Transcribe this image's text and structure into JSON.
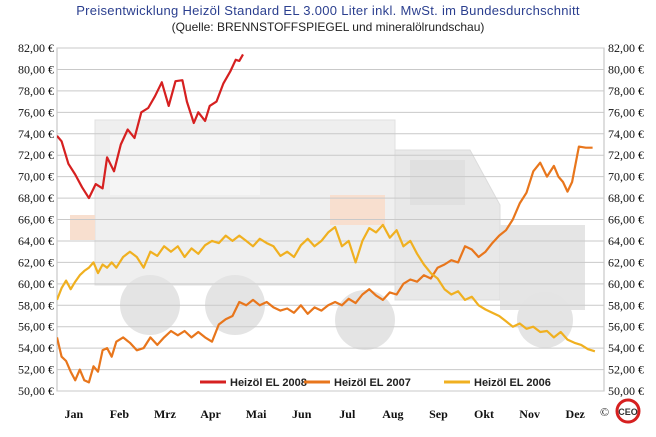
{
  "chart_data": {
    "type": "line",
    "title": "Preisentwicklung Heizöl Standard EL 3.000 Liter inkl. MwSt. im Bundesdurchschnitt",
    "subtitle": "(Quelle: BRENNSTOFFSPIEGEL und mineralölrundschau)",
    "xlabel": "",
    "ylabel": "",
    "x_range": [
      0,
      12
    ],
    "ylim": [
      50,
      82
    ],
    "y_ticks": [
      50,
      52,
      54,
      56,
      58,
      60,
      62,
      64,
      66,
      68,
      70,
      72,
      74,
      76,
      78,
      80,
      82
    ],
    "y_tick_labels": [
      "50,00 €",
      "52,00 €",
      "54,00 €",
      "56,00 €",
      "58,00 €",
      "60,00 €",
      "62,00 €",
      "64,00 €",
      "66,00 €",
      "68,00 €",
      "70,00 €",
      "72,00 €",
      "74,00 €",
      "76,00 €",
      "78,00 €",
      "80,00 €",
      "82,00 €"
    ],
    "months": [
      "Jan",
      "Feb",
      "Mrz",
      "Apr",
      "Mai",
      "Jun",
      "Jul",
      "Aug",
      "Sep",
      "Okt",
      "Nov",
      "Dez"
    ],
    "grid": true,
    "legend_position": "bottom",
    "copyright": "©",
    "logo_text": "CEO",
    "series": [
      {
        "name": "Heizöl EL 2008",
        "color": "#d62020",
        "x": [
          0.0,
          0.1,
          0.25,
          0.4,
          0.55,
          0.7,
          0.85,
          1.0,
          1.1,
          1.25,
          1.4,
          1.55,
          1.7,
          1.85,
          2.0,
          2.15,
          2.3,
          2.45,
          2.6,
          2.75,
          2.85,
          3.0,
          3.1,
          3.25,
          3.35,
          3.5,
          3.65,
          3.8,
          3.92,
          4.0,
          4.08
        ],
        "y": [
          73.8,
          73.3,
          71.2,
          70.2,
          69.0,
          68.0,
          69.3,
          68.9,
          71.8,
          70.5,
          73.0,
          74.4,
          73.6,
          76.0,
          76.4,
          77.5,
          78.8,
          76.6,
          78.9,
          79.0,
          77.0,
          75.0,
          76.0,
          75.2,
          76.6,
          77.0,
          78.7,
          79.8,
          80.9,
          80.8,
          81.4
        ]
      },
      {
        "name": "Heizöl EL 2007",
        "color": "#e8761c",
        "x": [
          0.0,
          0.1,
          0.2,
          0.3,
          0.4,
          0.5,
          0.6,
          0.7,
          0.8,
          0.9,
          1.0,
          1.1,
          1.2,
          1.3,
          1.45,
          1.6,
          1.75,
          1.9,
          2.05,
          2.2,
          2.35,
          2.5,
          2.65,
          2.8,
          2.95,
          3.1,
          3.25,
          3.4,
          3.55,
          3.7,
          3.85,
          4.0,
          4.15,
          4.3,
          4.45,
          4.6,
          4.75,
          4.9,
          5.05,
          5.2,
          5.35,
          5.5,
          5.65,
          5.8,
          5.95,
          6.1,
          6.25,
          6.4,
          6.55,
          6.7,
          6.85,
          7.0,
          7.15,
          7.3,
          7.45,
          7.6,
          7.75,
          7.9,
          8.05,
          8.2,
          8.35,
          8.5,
          8.65,
          8.8,
          8.95,
          9.1,
          9.25,
          9.4,
          9.55,
          9.7,
          9.85,
          10.0,
          10.15,
          10.3,
          10.45,
          10.6,
          10.75,
          10.9,
          11.0,
          11.1,
          11.2,
          11.3,
          11.45,
          11.6,
          11.75
        ],
        "y": [
          55.0,
          53.2,
          52.8,
          51.8,
          51.0,
          52.0,
          51.0,
          50.8,
          52.3,
          51.8,
          53.8,
          54.0,
          53.2,
          54.6,
          55.0,
          54.5,
          53.8,
          54.0,
          55.0,
          54.3,
          55.0,
          55.6,
          55.2,
          55.6,
          55.0,
          55.5,
          55.0,
          54.6,
          56.2,
          56.7,
          57.0,
          58.3,
          58.0,
          58.5,
          58.0,
          58.3,
          57.8,
          57.5,
          57.7,
          57.3,
          58.0,
          57.2,
          57.8,
          57.5,
          58.0,
          58.3,
          58.0,
          58.6,
          58.2,
          59.0,
          59.5,
          58.9,
          58.5,
          59.2,
          59.0,
          60.0,
          60.4,
          60.2,
          60.8,
          60.5,
          61.5,
          61.8,
          62.2,
          62.0,
          63.5,
          63.2,
          62.5,
          63.0,
          63.8,
          64.5,
          65.0,
          66.0,
          67.5,
          68.5,
          70.5,
          71.3,
          70.0,
          71.0,
          70.0,
          69.5,
          68.6,
          69.5,
          72.8,
          72.7,
          72.7
        ]
      },
      {
        "name": "Heizöl EL 2006",
        "color": "#f0b020",
        "x": [
          0.0,
          0.1,
          0.2,
          0.3,
          0.4,
          0.5,
          0.6,
          0.7,
          0.8,
          0.9,
          1.0,
          1.1,
          1.2,
          1.3,
          1.45,
          1.6,
          1.75,
          1.9,
          2.05,
          2.2,
          2.35,
          2.5,
          2.65,
          2.8,
          2.95,
          3.1,
          3.25,
          3.4,
          3.55,
          3.7,
          3.85,
          4.0,
          4.15,
          4.3,
          4.45,
          4.6,
          4.75,
          4.9,
          5.05,
          5.2,
          5.35,
          5.5,
          5.65,
          5.8,
          5.95,
          6.1,
          6.25,
          6.4,
          6.55,
          6.7,
          6.85,
          7.0,
          7.15,
          7.3,
          7.45,
          7.6,
          7.75,
          7.9,
          8.05,
          8.2,
          8.35,
          8.5,
          8.65,
          8.8,
          8.95,
          9.1,
          9.25,
          9.4,
          9.55,
          9.7,
          9.85,
          10.0,
          10.15,
          10.3,
          10.45,
          10.6,
          10.75,
          10.9,
          11.05,
          11.2,
          11.35,
          11.5,
          11.65,
          11.8
        ],
        "y": [
          58.5,
          59.6,
          60.3,
          59.5,
          60.2,
          60.8,
          61.2,
          61.5,
          62.0,
          61.0,
          61.8,
          61.5,
          62.0,
          61.5,
          62.5,
          63.0,
          62.5,
          61.5,
          63.0,
          62.6,
          63.5,
          63.0,
          63.5,
          62.5,
          63.3,
          62.8,
          63.6,
          64.0,
          63.8,
          64.5,
          64.0,
          64.5,
          64.0,
          63.5,
          64.2,
          63.8,
          63.5,
          62.6,
          63.0,
          62.5,
          63.6,
          64.2,
          63.5,
          64.0,
          64.8,
          65.3,
          63.5,
          64.0,
          62.0,
          64.0,
          65.2,
          64.8,
          65.5,
          64.3,
          65.0,
          63.5,
          64.0,
          62.8,
          61.8,
          61.0,
          60.5,
          59.5,
          59.0,
          59.3,
          58.5,
          58.8,
          58.0,
          57.6,
          57.3,
          57.0,
          56.5,
          56.0,
          56.3,
          55.8,
          56.0,
          55.5,
          55.6,
          55.0,
          55.5,
          54.8,
          54.5,
          54.3,
          53.9,
          53.7
        ]
      }
    ]
  }
}
